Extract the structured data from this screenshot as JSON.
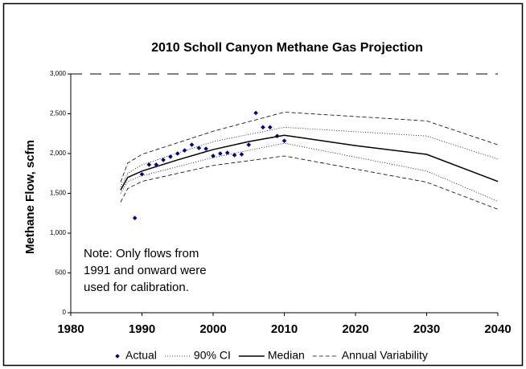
{
  "chart_data": {
    "type": "line",
    "title": "2010 Scholl Canyon Methane Gas Projection",
    "y_label": "Methane Flow, scfm",
    "annotation": [
      "Note: Only flows from",
      "1991 and onward were",
      "used for calibration."
    ],
    "xlim": [
      1980,
      2040
    ],
    "xticks": [
      1980,
      1990,
      2000,
      2010,
      2020,
      2030,
      2040
    ],
    "ylim": [
      0,
      3000
    ],
    "yticks": [
      0,
      500,
      {
        "value": 1000,
        "label": "1,000"
      },
      {
        "value": 1500,
        "label": "1,500"
      },
      {
        "value": 2000,
        "label": "2,000"
      },
      {
        "value": 2500,
        "label": "2,500"
      },
      {
        "value": 3000,
        "label": "3,000"
      }
    ],
    "series": [
      {
        "name": "Actual",
        "kind": "scatter",
        "color": "#000080",
        "x": [
          1989,
          1990,
          1991,
          1992,
          1993,
          1994,
          1995,
          1996,
          1997,
          1998,
          1999,
          2000,
          2001,
          2002,
          2003,
          2004,
          2005,
          2006,
          2007,
          2008,
          2009,
          2010
        ],
        "values": [
          1190,
          1740,
          1860,
          1860,
          1920,
          1960,
          2000,
          2040,
          2110,
          2070,
          2060,
          1970,
          2000,
          2010,
          1980,
          1990,
          2110,
          2510,
          2330,
          2330,
          2220,
          2160
        ]
      },
      {
        "name": "90% CI",
        "kind": "band",
        "color": "#000000",
        "dash": "1,2",
        "x": [
          1987,
          1988,
          1990,
          2000,
          2010,
          2030,
          2040
        ],
        "upper": [
          1580,
          1750,
          1860,
          2150,
          2330,
          2220,
          1930
        ],
        "lower": [
          1500,
          1650,
          1720,
          1950,
          2130,
          1780,
          1400
        ]
      },
      {
        "name": "Median",
        "kind": "line",
        "color": "#000000",
        "x": [
          1987,
          1988,
          1990,
          1995,
          2000,
          2005,
          2010,
          2020,
          2030,
          2040
        ],
        "values": [
          1540,
          1700,
          1780,
          1920,
          2050,
          2150,
          2230,
          2100,
          1990,
          1650
        ]
      },
      {
        "name": "Annual Variability",
        "kind": "band",
        "color": "#000000",
        "dash": "5,3",
        "x": [
          1987,
          1988,
          1990,
          2000,
          2010,
          2030,
          2040
        ],
        "upper": [
          1640,
          1880,
          1990,
          2280,
          2520,
          2410,
          2110
        ],
        "lower": [
          1390,
          1560,
          1650,
          1850,
          1970,
          1640,
          1300
        ]
      }
    ]
  }
}
